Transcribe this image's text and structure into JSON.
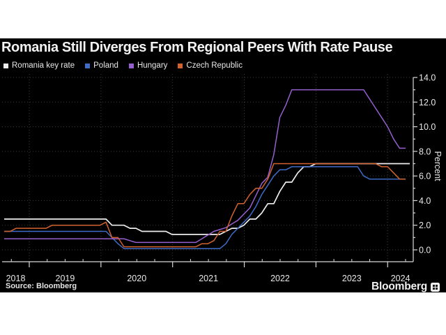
{
  "header": {
    "title": "Romania Still Diverges From Regional Peers With Rate Pause"
  },
  "legend": [
    {
      "label": "Romania key rate",
      "color": "#ededed"
    },
    {
      "label": "Poland",
      "color": "#3e6cc7"
    },
    {
      "label": "Hungary",
      "color": "#9560ce"
    },
    {
      "label": "Czech Republic",
      "color": "#d2622e"
    }
  ],
  "footer": {
    "source": "Source: Bloomberg",
    "brand": "Bloomberg"
  },
  "chart_data": {
    "type": "line",
    "title": "Romania Still Diverges From Regional Peers With Rate Pause",
    "ylabel": "Percent",
    "ylim": [
      0,
      14
    ],
    "ytick_step": 2,
    "grid": "dotted",
    "legend_position": "top-left",
    "x_frequency": "monthly",
    "x_start": "2018-09",
    "x_end": "2024-04",
    "x_tick_labels": [
      "2018",
      "2019",
      "2020",
      "2021",
      "2022",
      "2023",
      "2024"
    ],
    "series": [
      {
        "name": "Romania key rate",
        "color": "#ededed",
        "values": [
          2.5,
          2.5,
          2.5,
          2.5,
          2.5,
          2.5,
          2.5,
          2.5,
          2.5,
          2.5,
          2.5,
          2.5,
          2.5,
          2.5,
          2.5,
          2.5,
          2.5,
          2.5,
          2.0,
          2.0,
          2.0,
          1.75,
          1.75,
          1.5,
          1.5,
          1.5,
          1.5,
          1.5,
          1.25,
          1.25,
          1.25,
          1.25,
          1.25,
          1.25,
          1.25,
          1.25,
          1.25,
          1.5,
          1.75,
          1.75,
          2.0,
          2.5,
          2.5,
          3.0,
          3.75,
          3.75,
          4.75,
          5.5,
          5.5,
          6.25,
          6.75,
          6.75,
          7.0,
          7.0,
          7.0,
          7.0,
          7.0,
          7.0,
          7.0,
          7.0,
          7.0,
          7.0,
          7.0,
          7.0,
          7.0,
          7.0,
          7.0,
          7.0
        ]
      },
      {
        "name": "Poland",
        "color": "#3e6cc7",
        "values": [
          1.5,
          1.5,
          1.5,
          1.5,
          1.5,
          1.5,
          1.5,
          1.5,
          1.5,
          1.5,
          1.5,
          1.5,
          1.5,
          1.5,
          1.5,
          1.5,
          1.5,
          1.5,
          1.0,
          0.5,
          0.1,
          0.1,
          0.1,
          0.1,
          0.1,
          0.1,
          0.1,
          0.1,
          0.1,
          0.1,
          0.1,
          0.1,
          0.1,
          0.1,
          0.1,
          0.1,
          0.1,
          0.5,
          1.25,
          1.75,
          2.25,
          2.75,
          3.5,
          4.5,
          5.25,
          6.0,
          6.5,
          6.5,
          6.75,
          6.75,
          6.75,
          6.75,
          6.75,
          6.75,
          6.75,
          6.75,
          6.75,
          6.75,
          6.75,
          6.75,
          6.0,
          5.75,
          5.75,
          5.75,
          5.75,
          5.75,
          5.75,
          5.75
        ]
      },
      {
        "name": "Hungary",
        "color": "#9560ce",
        "values": [
          0.9,
          0.9,
          0.9,
          0.9,
          0.9,
          0.9,
          0.9,
          0.9,
          0.9,
          0.9,
          0.9,
          0.9,
          0.9,
          0.9,
          0.9,
          0.9,
          0.9,
          0.9,
          0.9,
          0.9,
          0.9,
          0.75,
          0.6,
          0.6,
          0.6,
          0.6,
          0.6,
          0.6,
          0.6,
          0.6,
          0.6,
          0.6,
          0.6,
          0.9,
          1.2,
          1.5,
          1.65,
          1.8,
          2.1,
          2.4,
          2.9,
          3.4,
          4.4,
          5.4,
          5.9,
          7.75,
          10.75,
          11.75,
          13.0,
          13.0,
          13.0,
          13.0,
          13.0,
          13.0,
          13.0,
          13.0,
          13.0,
          13.0,
          13.0,
          13.0,
          13.0,
          12.25,
          11.5,
          10.75,
          10.0,
          9.0,
          8.25,
          8.25
        ]
      },
      {
        "name": "Czech Republic",
        "color": "#d2622e",
        "values": [
          1.5,
          1.5,
          1.75,
          1.75,
          1.75,
          1.75,
          1.75,
          1.75,
          2.0,
          2.0,
          2.0,
          2.0,
          2.0,
          2.0,
          2.0,
          2.0,
          2.0,
          2.25,
          1.0,
          1.0,
          0.25,
          0.25,
          0.25,
          0.25,
          0.25,
          0.25,
          0.25,
          0.25,
          0.25,
          0.25,
          0.25,
          0.25,
          0.25,
          0.5,
          0.5,
          0.75,
          1.5,
          1.5,
          2.75,
          3.75,
          3.75,
          4.5,
          5.0,
          5.0,
          5.75,
          7.0,
          7.0,
          7.0,
          7.0,
          7.0,
          7.0,
          7.0,
          7.0,
          7.0,
          7.0,
          7.0,
          7.0,
          7.0,
          7.0,
          7.0,
          7.0,
          7.0,
          7.0,
          6.75,
          6.75,
          6.25,
          5.75,
          5.75
        ]
      }
    ]
  }
}
